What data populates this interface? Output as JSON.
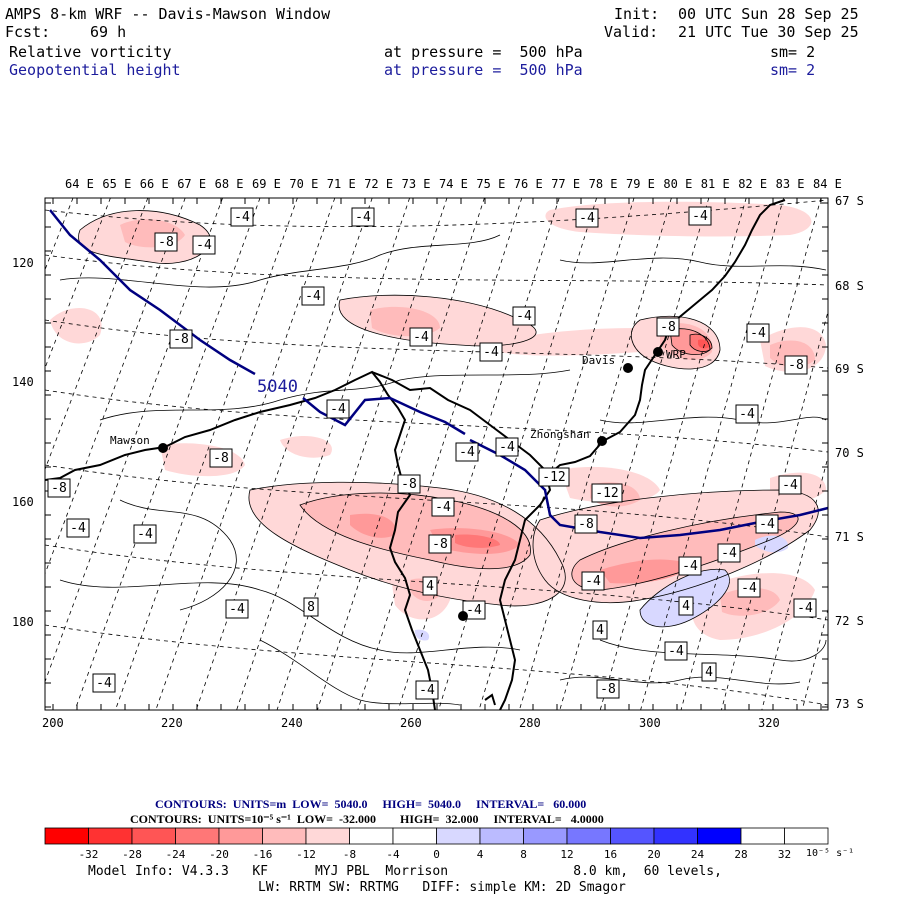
{
  "header": {
    "title": "AMPS 8-km WRF -- Davis-Mawson Window",
    "fcst_label": "Fcst:",
    "fcst_value": "69 h",
    "init_label": "Init:",
    "init_value": "00 UTC Sun 28 Sep 25",
    "valid_label": "Valid:",
    "valid_value": "21 UTC Tue 30 Sep 25",
    "field1_name": "Relative vorticity",
    "field1_level": "at pressure =  500 hPa",
    "field1_sm": "sm= 2",
    "field2_name": "Geopotential height",
    "field2_level": "at pressure =  500 hPa",
    "field2_sm": "sm= 2"
  },
  "map": {
    "lon_labels": [
      "64 E",
      "65 E",
      "66 E",
      "67 E",
      "68 E",
      "69 E",
      "70 E",
      "71 E",
      "72 E",
      "73 E",
      "74 E",
      "75 E",
      "76 E",
      "77 E",
      "78 E",
      "79 E",
      "80 E",
      "81 E",
      "82 E",
      "83 E",
      "84 E"
    ],
    "lat_labels": [
      "67 S",
      "68 S",
      "69 S",
      "70 S",
      "71 S",
      "72 S",
      "73 S"
    ],
    "y_grid_labels": [
      "120",
      "140",
      "160",
      "180"
    ],
    "x_grid_labels": [
      "200",
      "220",
      "240",
      "260",
      "280",
      "300",
      "320"
    ],
    "stations": [
      "Mawson",
      "Zhongshan",
      "Davis",
      "WRP"
    ],
    "height_contour_label": "5040",
    "vorticity_labels": [
      "-4",
      "-8",
      "-4",
      "-4",
      "-4",
      "-4",
      "-4",
      "-8",
      "-4",
      "-4",
      "-8",
      "-4",
      "-4",
      "-8",
      "-4",
      "-4",
      "-4",
      "-4",
      "-8",
      "-12",
      "-8",
      "-4",
      "-12",
      "-4",
      "-8",
      "-8",
      "-4",
      "-4",
      "-4",
      "-8",
      "-4",
      "-4",
      "-4",
      "4",
      "-4",
      "-4",
      "8",
      "4",
      "-4",
      "4",
      "-4",
      "4",
      "-4",
      "-4",
      "-8",
      "-4"
    ]
  },
  "footer": {
    "height_contours": "CONTOURS:  UNITS=m  LOW=  5040.0     HIGH=  5040.0     INTERVAL=   60.000",
    "vort_contours": "CONTOURS:  UNITS=10⁻⁵ s⁻¹  LOW=  -32.000        HIGH=  32.000     INTERVAL=   4.0000",
    "colorbar_ticks": [
      "-32",
      "-28",
      "-24",
      "-20",
      "-16",
      "-12",
      "-8",
      "-4",
      "0",
      "4",
      "8",
      "12",
      "16",
      "20",
      "24",
      "28",
      "32"
    ],
    "colorbar_units": "10⁻⁵ s⁻¹",
    "colorbar_colors": [
      "#ff0000",
      "#ff3232",
      "#ff5555",
      "#ff7777",
      "#ff9999",
      "#ffbbbb",
      "#ffd8d8",
      "#ffffff",
      "#ffffff",
      "#ffffff",
      "#d8d8ff",
      "#bbbbff",
      "#9999ff",
      "#7777ff",
      "#5555ff",
      "#3232ff",
      "#0000ff"
    ],
    "model_info_1": "Model Info: V4.3.3   KF      MYJ PBL  Morrison                8.0 km,  60 levels,",
    "model_info_2": "LW: RRTM SW: RRTMG   DIFF: simple KM: 2D Smagor"
  }
}
